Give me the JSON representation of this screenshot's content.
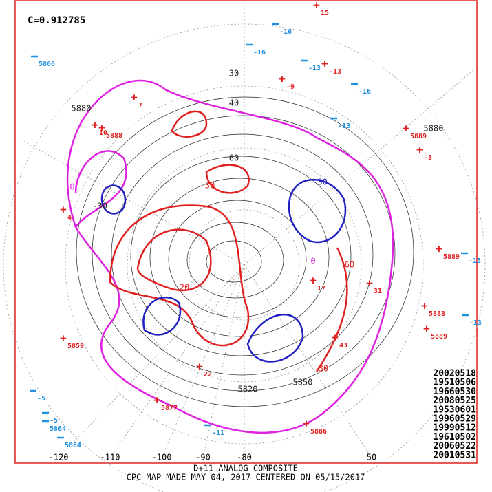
{
  "header": {
    "correlation": "C=0.912785"
  },
  "footer": {
    "line1": "D+11 ANALOG COMPOSITE",
    "line2": "CPC MAP MADE MAY 04, 2017 CENTERED ON 05/15/2017"
  },
  "analog_dates": [
    "20020518",
    "19510506",
    "19660530",
    "20080525",
    "19530601",
    "19960529",
    "19990512",
    "19610502",
    "20060522",
    "20010531"
  ],
  "longitude_labels": [
    "-120",
    "-110",
    "-100",
    "-90",
    "-80",
    "50"
  ],
  "contour_labels": [
    "5880",
    "5850",
    "5820",
    "5880",
    "30",
    "40",
    "60",
    "-30",
    "0",
    "0",
    "30",
    "-30",
    "60",
    "30",
    "20"
  ],
  "positive_centers": [
    "15",
    "-9",
    "-13",
    "7",
    "10",
    "5888",
    "4",
    "5889",
    "-3",
    "5889",
    "5883",
    "5889",
    "5859",
    "17",
    "31",
    "43",
    "22",
    "5877",
    "5886"
  ],
  "negative_centers": [
    "-16",
    "-16",
    "-13",
    "-16",
    "-13",
    "5866",
    "-5",
    "-5",
    "5864",
    "5864",
    "-15",
    "-13",
    "-11"
  ]
}
